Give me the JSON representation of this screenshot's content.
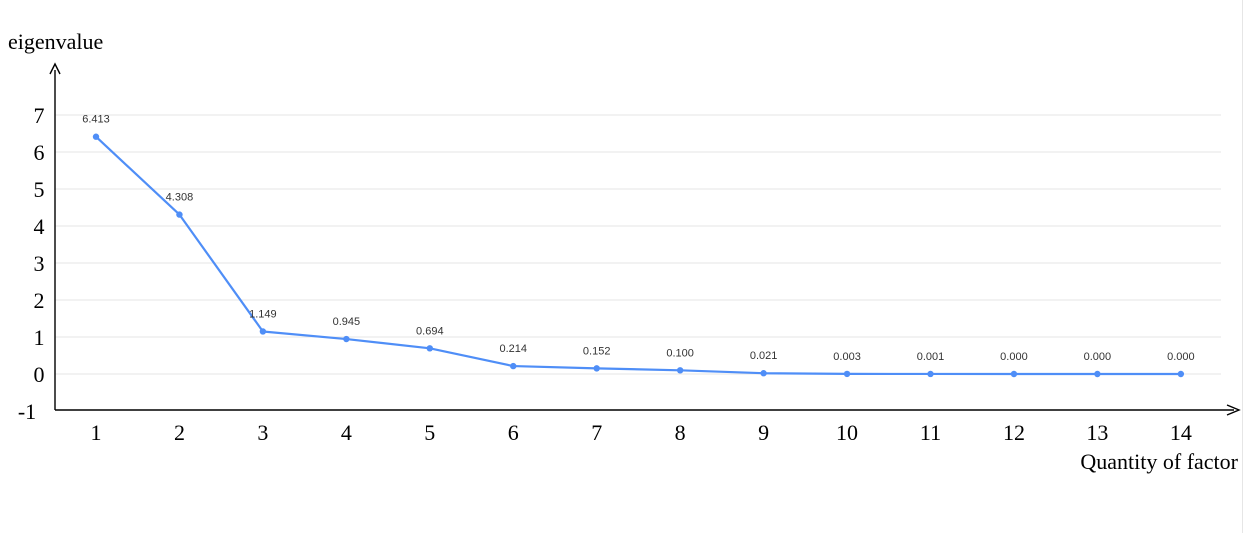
{
  "chart_data": {
    "type": "line",
    "title": "",
    "ylabel": "eigenvalue",
    "xlabel": "Quantity of factor",
    "categories": [
      "1",
      "2",
      "3",
      "4",
      "5",
      "6",
      "7",
      "8",
      "9",
      "10",
      "11",
      "12",
      "13",
      "14"
    ],
    "series": [
      {
        "values": [
          6.413,
          4.308,
          1.149,
          0.945,
          0.694,
          0.214,
          0.152,
          0.1,
          0.021,
          0.003,
          0.001,
          0.0,
          0.0,
          0.0
        ],
        "labels": [
          "6.413",
          "4.308",
          "1.149",
          "0.945",
          "0.694",
          "0.214",
          "0.152",
          "0.100",
          "0.021",
          "0.003",
          "0.001",
          "0.000",
          "0.000",
          "0.000"
        ],
        "color": "#4f8ef7"
      }
    ],
    "yticks": [
      "-1",
      "0",
      "1",
      "2",
      "3",
      "4",
      "5",
      "6",
      "7"
    ],
    "ylim": [
      -1,
      7
    ],
    "grid": true,
    "colors": {
      "line": "#4f8ef7",
      "grid": "#e6e6e6",
      "axis": "#000000",
      "label": "#333333"
    }
  }
}
